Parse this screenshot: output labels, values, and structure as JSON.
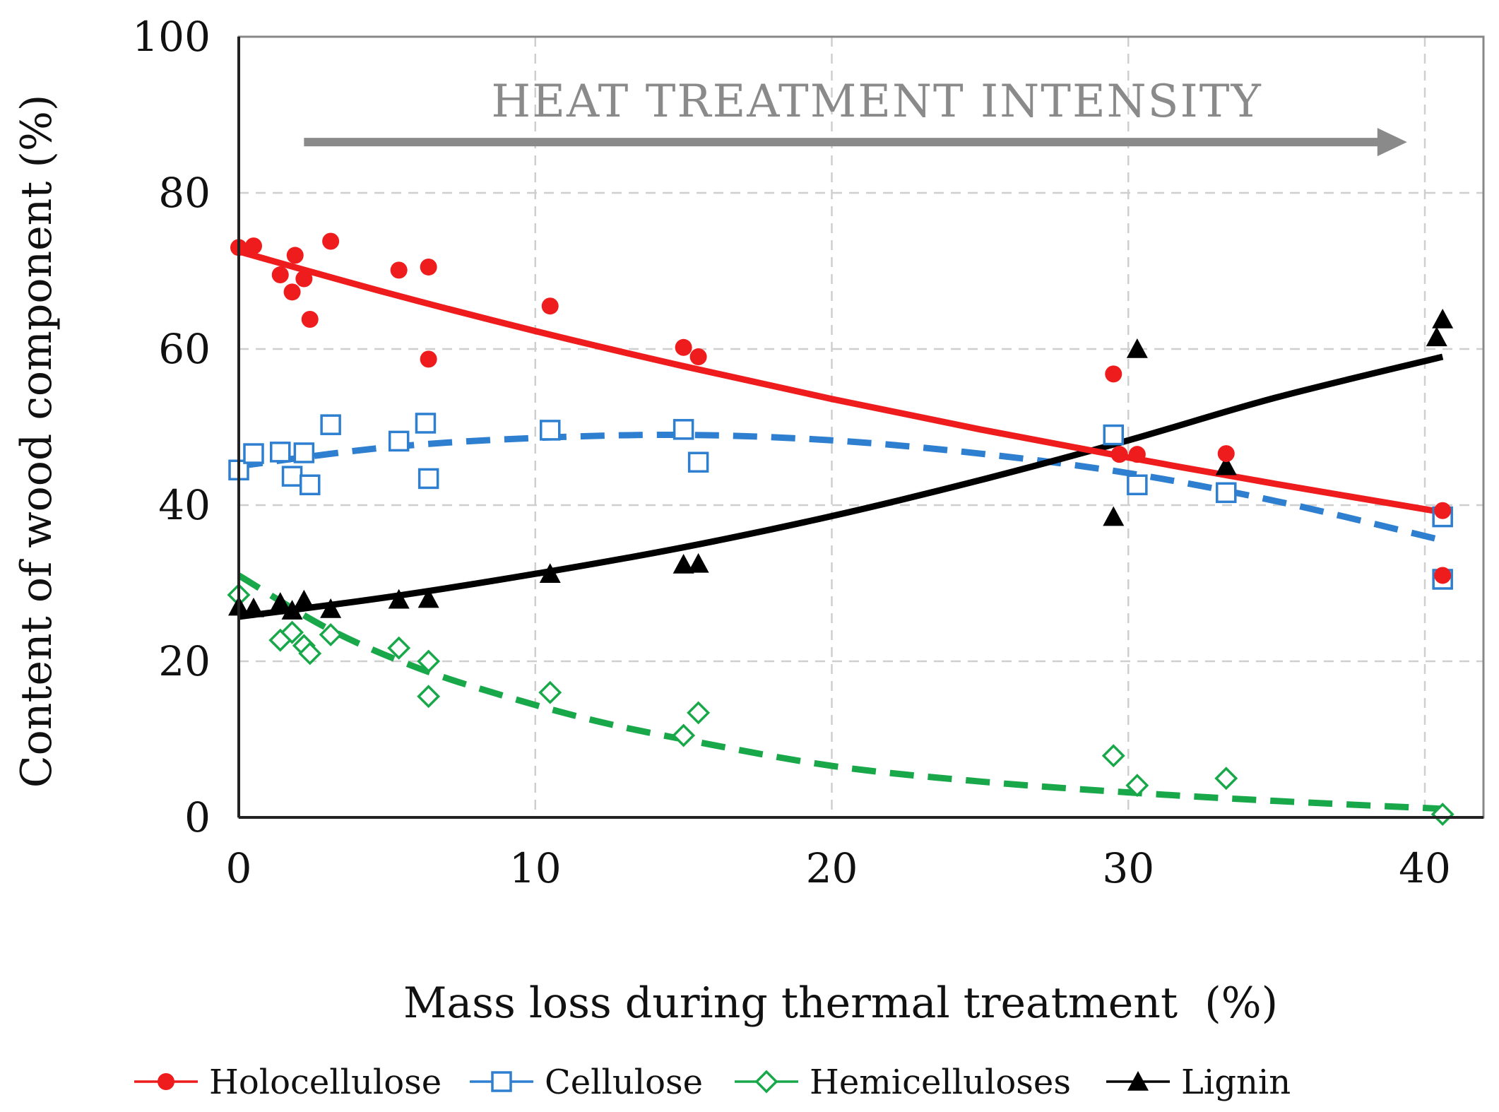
{
  "chart_data": {
    "type": "scatter",
    "title": "",
    "xlabel": "Mass loss during thermal treatment  (%)",
    "ylabel": "Content of wood component (%)",
    "xlim": [
      0,
      42
    ],
    "ylim": [
      0,
      100
    ],
    "xticks": [
      0,
      10,
      20,
      30,
      40
    ],
    "yticks": [
      0,
      20,
      40,
      60,
      80,
      100
    ],
    "grid": true,
    "legend_position": "bottom",
    "annotation": {
      "text": "HEAT TREATMENT INTENSITY",
      "arrow_from": [
        2.2,
        86.5
      ],
      "arrow_to": [
        39.4,
        86.5
      ]
    },
    "series": [
      {
        "name": "Holocellulose",
        "color": "#ee1c1c",
        "marker": "circle-filled",
        "points": [
          [
            0,
            73
          ],
          [
            0.5,
            73.2
          ],
          [
            1.4,
            69.5
          ],
          [
            1.8,
            67.3
          ],
          [
            1.9,
            72
          ],
          [
            2.2,
            69
          ],
          [
            2.4,
            63.8
          ],
          [
            3.1,
            73.8
          ],
          [
            5.4,
            70.1
          ],
          [
            6.4,
            70.5
          ],
          [
            6.4,
            58.7
          ],
          [
            10.5,
            65.5
          ],
          [
            15,
            60.2
          ],
          [
            15.5,
            59
          ],
          [
            29.5,
            56.8
          ],
          [
            29.7,
            46.5
          ],
          [
            30.3,
            46.5
          ],
          [
            33.3,
            46.6
          ],
          [
            40.6,
            39.3
          ],
          [
            40.6,
            31
          ]
        ],
        "trend": {
          "style": "solid",
          "x": [
            0,
            5,
            10,
            15,
            20,
            25,
            30,
            35,
            40.6
          ],
          "y": [
            72.5,
            67.2,
            62.3,
            57.8,
            53.6,
            49.7,
            46.1,
            42.7,
            39.1
          ]
        }
      },
      {
        "name": "Cellulose",
        "color": "#2e7fd0",
        "marker": "square-open",
        "points": [
          [
            0,
            44.5
          ],
          [
            0.5,
            46.6
          ],
          [
            1.4,
            46.8
          ],
          [
            1.8,
            43.7
          ],
          [
            2.2,
            46.7
          ],
          [
            2.4,
            42.6
          ],
          [
            3.1,
            50.3
          ],
          [
            5.4,
            48.2
          ],
          [
            6.3,
            50.5
          ],
          [
            6.4,
            43.4
          ],
          [
            10.5,
            49.6
          ],
          [
            15,
            49.7
          ],
          [
            15.5,
            45.5
          ],
          [
            29.5,
            49
          ],
          [
            30.3,
            42.6
          ],
          [
            33.3,
            41.6
          ],
          [
            40.6,
            38.5
          ],
          [
            40.6,
            30.5
          ]
        ],
        "trend": {
          "style": "dashed",
          "x": [
            0,
            5,
            10,
            15,
            20,
            25,
            30,
            35,
            40.6
          ],
          "y": [
            45,
            47.4,
            48.6,
            49,
            48.3,
            46.6,
            44.1,
            40.5,
            35.5
          ]
        }
      },
      {
        "name": "Hemicelluloses",
        "color": "#18a84a",
        "marker": "diamond-open",
        "points": [
          [
            0,
            28.5
          ],
          [
            1.4,
            22.7
          ],
          [
            1.8,
            23.7
          ],
          [
            2.2,
            22
          ],
          [
            2.4,
            21
          ],
          [
            3.1,
            23.4
          ],
          [
            5.4,
            21.7
          ],
          [
            6.4,
            20
          ],
          [
            6.4,
            15.5
          ],
          [
            10.5,
            16
          ],
          [
            15,
            10.5
          ],
          [
            15.5,
            13.4
          ],
          [
            29.5,
            7.9
          ],
          [
            30.3,
            4.1
          ],
          [
            33.3,
            5
          ],
          [
            40.6,
            0.4
          ]
        ],
        "trend": {
          "style": "dashed",
          "x": [
            0,
            3,
            6,
            9,
            12,
            15,
            20,
            25,
            30,
            35,
            40.6
          ],
          "y": [
            31,
            24.2,
            19.2,
            15.5,
            12.4,
            10,
            6.6,
            4.6,
            3.2,
            2.1,
            1.1
          ]
        }
      },
      {
        "name": "Lignin",
        "color": "#000000",
        "marker": "triangle-filled",
        "points": [
          [
            0,
            27
          ],
          [
            0.5,
            26.8
          ],
          [
            1.4,
            27.5
          ],
          [
            1.8,
            26.5
          ],
          [
            2.2,
            27.8
          ],
          [
            3.1,
            26.7
          ],
          [
            5.4,
            27.9
          ],
          [
            6.4,
            28
          ],
          [
            10.5,
            31.2
          ],
          [
            15,
            32.4
          ],
          [
            15.5,
            32.5
          ],
          [
            29.5,
            38.5
          ],
          [
            30.3,
            60
          ],
          [
            33.3,
            45
          ],
          [
            40.4,
            61.5
          ],
          [
            40.6,
            63.8
          ]
        ],
        "trend": {
          "style": "solid",
          "x": [
            0,
            5,
            10,
            15,
            20,
            25,
            30,
            35,
            40.6
          ],
          "y": [
            25.7,
            28.2,
            31.2,
            34.6,
            38.6,
            43.2,
            48.3,
            53.8,
            59
          ]
        }
      }
    ]
  }
}
